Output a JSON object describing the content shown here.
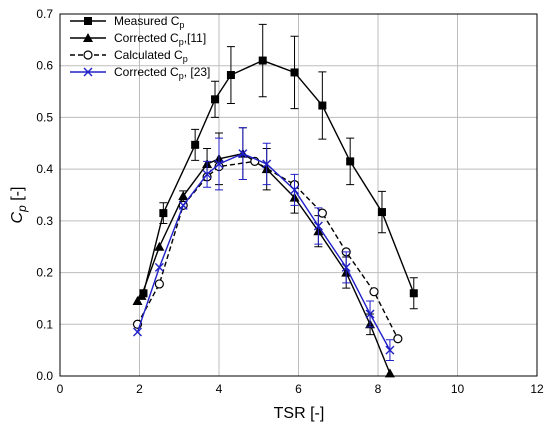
{
  "chart_data": {
    "type": "line",
    "xlabel": "TSR [-]",
    "ylabel": "Cp [-]",
    "ylabel_main": "C",
    "ylabel_sub": "p",
    "ylabel_unit": " [-]",
    "xlim": [
      0,
      12
    ],
    "ylim": [
      0,
      0.7
    ],
    "xticks": [
      "0",
      "2",
      "4",
      "6",
      "8",
      "10",
      "12"
    ],
    "yticks": [
      "0.0",
      "0.1",
      "0.2",
      "0.3",
      "0.4",
      "0.5",
      "0.6",
      "0.7"
    ],
    "grid": true,
    "legend_position": "top-left",
    "series": [
      {
        "name": "Measured Cp",
        "legend_main": "Measured C",
        "legend_sub": "p",
        "legend_tail": "",
        "color": "#000000",
        "dash": "solid",
        "marker": "square",
        "x": [
          2.1,
          2.6,
          3.4,
          3.9,
          4.3,
          5.1,
          5.9,
          6.6,
          7.3,
          8.1,
          8.9
        ],
        "y": [
          0.16,
          0.315,
          0.447,
          0.535,
          0.582,
          0.61,
          0.587,
          0.523,
          0.415,
          0.317,
          0.16
        ],
        "err": [
          0,
          0.02,
          0.03,
          0.035,
          0.055,
          0.07,
          0.07,
          0.065,
          0.045,
          0.04,
          0.03
        ]
      },
      {
        "name": "Corrected Cp,[11]",
        "legend_main": "Corrected C",
        "legend_sub": "p",
        "legend_tail": ",[11]",
        "color": "#000000",
        "dash": "solid",
        "marker": "triangle",
        "x": [
          1.95,
          2.05,
          2.5,
          3.1,
          3.7,
          4.0,
          4.6,
          5.2,
          5.9,
          6.5,
          7.2,
          7.8,
          8.3
        ],
        "y": [
          0.145,
          0.155,
          0.25,
          0.348,
          0.41,
          0.42,
          0.43,
          0.4,
          0.345,
          0.28,
          0.2,
          0.1,
          0.005
        ],
        "err": [
          0,
          0,
          0,
          0.01,
          0.03,
          0.05,
          0.05,
          0.04,
          0.03,
          0.03,
          0.03,
          0.02,
          0
        ]
      },
      {
        "name": "Calculated Cp",
        "legend_main": "Calculated C",
        "legend_sub": "p",
        "legend_tail": "",
        "color": "#000000",
        "dash": "dashed",
        "marker": "circle",
        "x": [
          1.95,
          2.5,
          3.1,
          3.7,
          4.0,
          4.9,
          5.9,
          6.6,
          7.2,
          7.9,
          8.5
        ],
        "y": [
          0.1,
          0.178,
          0.33,
          0.385,
          0.405,
          0.415,
          0.37,
          0.315,
          0.24,
          0.163,
          0.072
        ],
        "err": [
          0,
          0,
          0,
          0,
          0,
          0,
          0,
          0,
          0,
          0,
          0
        ]
      },
      {
        "name": "Corrected Cp, [23]",
        "legend_main": "Corrected C",
        "legend_sub": "p",
        "legend_tail": ", [23]",
        "color": "#2020c8",
        "dash": "solid",
        "marker": "x",
        "x": [
          1.95,
          2.5,
          3.1,
          3.7,
          4.0,
          4.6,
          5.2,
          5.9,
          6.5,
          7.2,
          7.8,
          8.3
        ],
        "y": [
          0.085,
          0.21,
          0.33,
          0.39,
          0.41,
          0.43,
          0.41,
          0.36,
          0.29,
          0.21,
          0.12,
          0.05
        ],
        "err": [
          0,
          0,
          0,
          0.025,
          0.05,
          0.05,
          0.04,
          0.03,
          0.035,
          0.03,
          0.025,
          0.02
        ]
      }
    ]
  }
}
